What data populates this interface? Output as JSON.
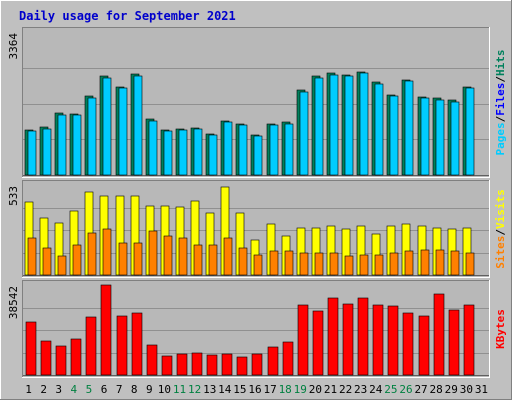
{
  "chart_data": {
    "type": "bar",
    "title": "Daily usage for September 2021",
    "days": [
      "1",
      "2",
      "3",
      "4",
      "5",
      "6",
      "7",
      "8",
      "9",
      "10",
      "11",
      "12",
      "13",
      "14",
      "15",
      "16",
      "17",
      "18",
      "19",
      "20",
      "21",
      "22",
      "23",
      "24",
      "25",
      "26",
      "27",
      "28",
      "29",
      "30",
      "31"
    ],
    "weekend_days": [
      "4",
      "5",
      "11",
      "12",
      "18",
      "19",
      "25",
      "26"
    ],
    "colors": {
      "hits": "#00805c",
      "files": "#00ccff",
      "sites": "#ff8000",
      "visits": "#ffff00",
      "kbytes": "#ff0000",
      "weekday_label": "#000000",
      "weekend_label": "#008040",
      "slash": "#000000",
      "title": "#0000cc"
    },
    "panels": [
      {
        "id": "hits-files",
        "max_label": "3364",
        "ymax": 3364,
        "legend": [
          {
            "text": "Hits",
            "color": "#00805c"
          },
          {
            "text": "Files",
            "color": "#0000ff"
          },
          {
            "text": "Pages",
            "color": "#00ccff"
          }
        ],
        "series": [
          {
            "name": "Hits",
            "color": "#00805c",
            "values": [
              1070,
              1120,
              1450,
              1430,
              1850,
              2330,
              2070,
              2370,
              1310,
              1070,
              1080,
              1110,
              960,
              1270,
              1200,
              940,
              1210,
              1250,
              2000,
              2320,
              2390,
              2350,
              2430,
              2180,
              1890,
              2240,
              1830,
              1800,
              1760,
              2080,
              null
            ]
          },
          {
            "name": "Files",
            "color": "#00ccff",
            "values": [
              1040,
              1090,
              1420,
              1400,
              1810,
              2290,
              2040,
              2340,
              1270,
              1040,
              1060,
              1080,
              930,
              1240,
              1170,
              910,
              1180,
              1210,
              1960,
              2280,
              2360,
              2320,
              2400,
              2150,
              1860,
              2200,
              1800,
              1760,
              1720,
              2040,
              null
            ]
          }
        ]
      },
      {
        "id": "sites-visits",
        "max_label": "533",
        "ymax": 533,
        "legend": [
          {
            "text": "Visits",
            "color": "#ffff00"
          },
          {
            "text": "Sites",
            "color": "#ff8000"
          }
        ],
        "series": [
          {
            "name": "Visits",
            "color": "#ffff00",
            "values": [
              430,
              340,
              310,
              380,
              490,
              470,
              470,
              470,
              410,
              410,
              400,
              440,
              370,
              520,
              370,
              210,
              300,
              230,
              280,
              280,
              290,
              270,
              290,
              240,
              290,
              300,
              290,
              280,
              270,
              280,
              null
            ]
          },
          {
            "name": "Sites",
            "color": "#ff8000",
            "values": [
              220,
              160,
              110,
              180,
              250,
              270,
              190,
              190,
              260,
              230,
              220,
              180,
              180,
              220,
              160,
              120,
              140,
              140,
              130,
              130,
              130,
              110,
              120,
              120,
              130,
              140,
              150,
              150,
              140,
              130,
              null
            ]
          }
        ]
      },
      {
        "id": "kbytes",
        "max_label": "38542",
        "ymax": 38542,
        "legend": [
          {
            "text": "KBytes",
            "color": "#ff0000"
          }
        ],
        "series": [
          {
            "name": "KBytes",
            "color": "#ff0000",
            "values": [
              22800,
              14500,
              12500,
              15500,
              25000,
              38500,
              25200,
              26600,
              12800,
              8200,
              9000,
              9600,
              8600,
              9000,
              7600,
              9200,
              12000,
              14000,
              30000,
              27500,
              33000,
              30500,
              32800,
              30000,
              29500,
              26600,
              25400,
              34800,
              27800,
              29900,
              null
            ]
          }
        ]
      }
    ]
  }
}
